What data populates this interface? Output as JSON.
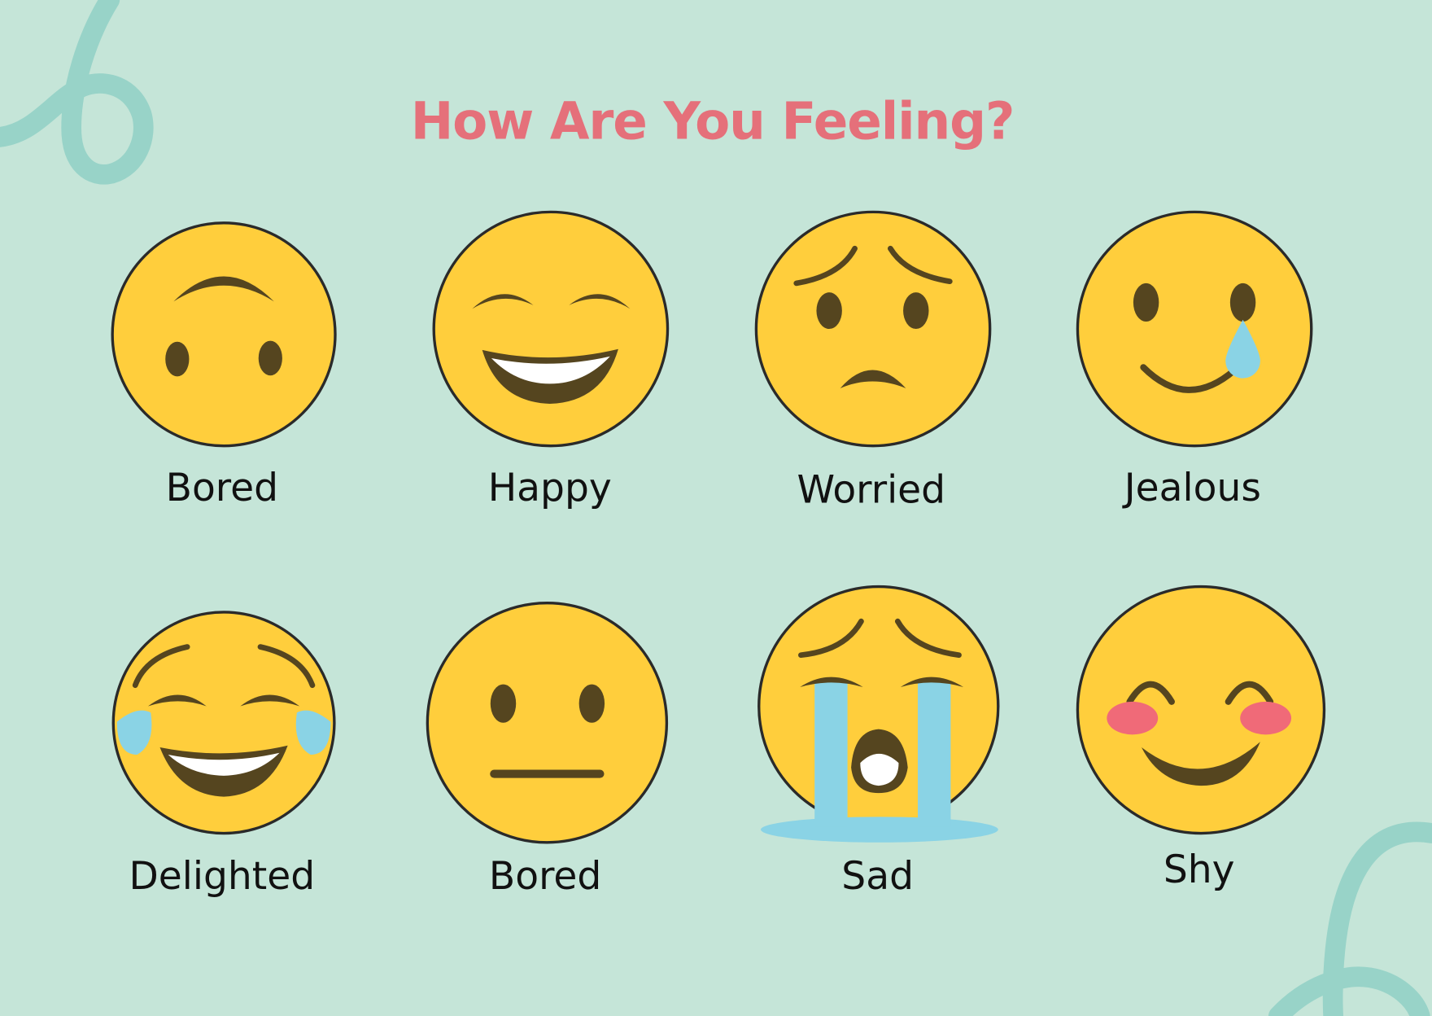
{
  "title": "How Are You Feeling?",
  "colors": {
    "background": "#c5e5d8",
    "title": "#e5707a",
    "face": "#ffce3c",
    "feature": "#55451f",
    "tear": "#8ad3e5",
    "blush": "#f06a78",
    "squiggle": "#98d3c8"
  },
  "emotions": [
    {
      "label": "Bored",
      "icon": "upside-down-face-icon"
    },
    {
      "label": "Happy",
      "icon": "grinning-squinting-face-icon"
    },
    {
      "label": "Worried",
      "icon": "worried-face-icon"
    },
    {
      "label": "Jealous",
      "icon": "smiling-tear-face-icon"
    },
    {
      "label": "Delighted",
      "icon": "tears-of-joy-face-icon"
    },
    {
      "label": "Bored",
      "icon": "neutral-face-icon"
    },
    {
      "label": "Sad",
      "icon": "crying-face-icon"
    },
    {
      "label": "Shy",
      "icon": "blushing-face-icon"
    }
  ]
}
